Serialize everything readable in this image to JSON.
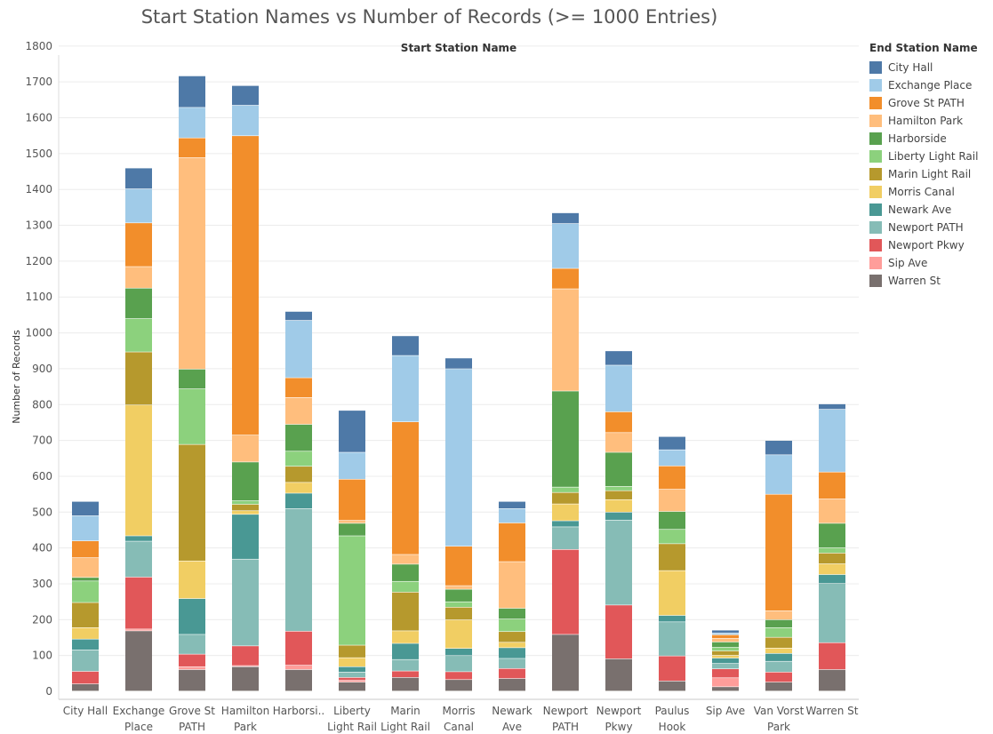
{
  "chart_data": {
    "type": "bar",
    "stacked": true,
    "title": "Start Station Names vs Number of Records (>= 1000 Entries)",
    "xlabel": "Start Station Name",
    "ylabel": "Number of Records",
    "ylim": [
      0,
      1800
    ],
    "yticks": [
      0,
      100,
      200,
      300,
      400,
      500,
      600,
      700,
      800,
      900,
      1000,
      1100,
      1200,
      1300,
      1400,
      1500,
      1600,
      1700,
      1800
    ],
    "grid": true,
    "legend_title": "End Station Name",
    "legend_position": "right",
    "categories": [
      [
        "City Hall"
      ],
      [
        "Exchange",
        "Place"
      ],
      [
        "Grove St",
        "PATH"
      ],
      [
        "Hamilton",
        "Park"
      ],
      [
        "Harborsi.."
      ],
      [
        "Liberty",
        "Light Rail"
      ],
      [
        "Marin",
        "Light Rail"
      ],
      [
        "Morris",
        "Canal"
      ],
      [
        "Newark",
        "Ave"
      ],
      [
        "Newport",
        "PATH"
      ],
      [
        "Newport",
        "Pkwy"
      ],
      [
        "Paulus",
        "Hook"
      ],
      [
        "Sip Ave"
      ],
      [
        "Van Vorst",
        "Park"
      ],
      [
        "Warren St"
      ]
    ],
    "series": [
      {
        "name": "Warren St",
        "color": "#79706e",
        "values": [
          20,
          168,
          60,
          68,
          60,
          25,
          38,
          32,
          35,
          158,
          90,
          28,
          12,
          25,
          60
        ]
      },
      {
        "name": "Sip Ave",
        "color": "#ff9d9a",
        "values": [
          0,
          5,
          8,
          3,
          12,
          5,
          0,
          0,
          0,
          0,
          0,
          0,
          25,
          0,
          0
        ]
      },
      {
        "name": "Newport Pkwy",
        "color": "#e15759",
        "values": [
          35,
          145,
          35,
          55,
          95,
          8,
          18,
          22,
          28,
          237,
          150,
          70,
          25,
          28,
          75
        ]
      },
      {
        "name": "Newport PATH",
        "color": "#86bcb6",
        "values": [
          60,
          100,
          55,
          242,
          342,
          15,
          32,
          45,
          28,
          63,
          237,
          95,
          15,
          30,
          165
        ]
      },
      {
        "name": "Newark Ave",
        "color": "#499894",
        "values": [
          30,
          15,
          100,
          125,
          43,
          15,
          45,
          20,
          30,
          17,
          22,
          18,
          15,
          22,
          25
        ]
      },
      {
        "name": "Morris Canal",
        "color": "#f1ce63",
        "values": [
          32,
          365,
          105,
          10,
          30,
          25,
          35,
          80,
          15,
          47,
          35,
          125,
          8,
          15,
          30
        ]
      },
      {
        "name": "Marin Light Rail",
        "color": "#b6992d",
        "values": [
          70,
          148,
          325,
          18,
          45,
          35,
          108,
          35,
          30,
          32,
          25,
          75,
          12,
          30,
          30
        ]
      },
      {
        "name": "Liberty Light Rail",
        "color": "#8cd17d",
        "values": [
          60,
          93,
          155,
          10,
          42,
          305,
          30,
          15,
          35,
          15,
          12,
          40,
          10,
          27,
          15
        ]
      },
      {
        "name": "Harborside",
        "color": "#59a14f",
        "values": [
          10,
          85,
          55,
          108,
          75,
          35,
          48,
          35,
          30,
          268,
          95,
          50,
          15,
          22,
          68
        ]
      },
      {
        "name": "Hamilton Park",
        "color": "#ffbe7d",
        "values": [
          55,
          60,
          590,
          75,
          75,
          8,
          27,
          10,
          130,
          285,
          55,
          62,
          10,
          25,
          68
        ]
      },
      {
        "name": "Grove St PATH",
        "color": "#f28e2b",
        "values": [
          47,
          122,
          55,
          835,
          55,
          115,
          370,
          110,
          108,
          57,
          58,
          65,
          10,
          325,
          75
        ]
      },
      {
        "name": "Exchange Place",
        "color": "#a0cbe8",
        "values": [
          70,
          95,
          85,
          85,
          160,
          75,
          185,
          495,
          40,
          125,
          130,
          45,
          5,
          110,
          175
        ]
      },
      {
        "name": "City Hall",
        "color": "#4e79a7",
        "values": [
          40,
          58,
          88,
          55,
          25,
          117,
          55,
          30,
          20,
          30,
          40,
          37,
          8,
          40,
          15
        ]
      }
    ],
    "totals": [
      529,
      1459,
      1716,
      1689,
      1059,
      783,
      991,
      929,
      529,
      1334,
      949,
      710,
      170,
      699,
      801
    ]
  }
}
